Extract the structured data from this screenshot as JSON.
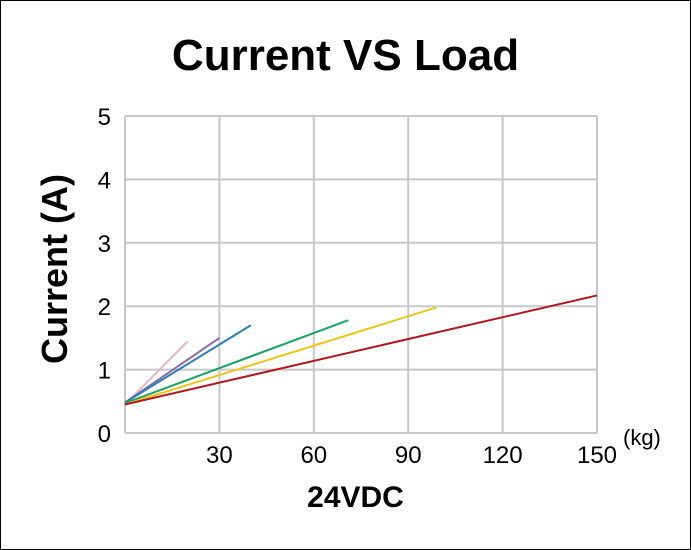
{
  "chart_data": {
    "type": "line",
    "title": "Current VS Load",
    "xlabel": "24VDC",
    "x_unit": "(kg)",
    "ylabel": "Current (A)",
    "xlim": [
      0,
      150
    ],
    "ylim": [
      0,
      5
    ],
    "x_ticks": [
      "30",
      "60",
      "90",
      "120",
      "150"
    ],
    "y_ticks": [
      "0",
      "1",
      "2",
      "3",
      "4",
      "5"
    ],
    "grid": true,
    "series": [
      {
        "color": "#e8b7bd",
        "points": [
          [
            0,
            0.45
          ],
          [
            20,
            1.45
          ]
        ]
      },
      {
        "color": "#8a6aa8",
        "points": [
          [
            0,
            0.48
          ],
          [
            30,
            1.5
          ]
        ]
      },
      {
        "color": "#2c7fb8",
        "points": [
          [
            0,
            0.48
          ],
          [
            40,
            1.7
          ]
        ]
      },
      {
        "color": "#1aa463",
        "points": [
          [
            0,
            0.47
          ],
          [
            71,
            1.78
          ]
        ]
      },
      {
        "color": "#f0c419",
        "points": [
          [
            0,
            0.45
          ],
          [
            99,
            1.98
          ]
        ]
      },
      {
        "color": "#b3161b",
        "points": [
          [
            0,
            0.45
          ],
          [
            150,
            2.17
          ]
        ]
      }
    ]
  }
}
